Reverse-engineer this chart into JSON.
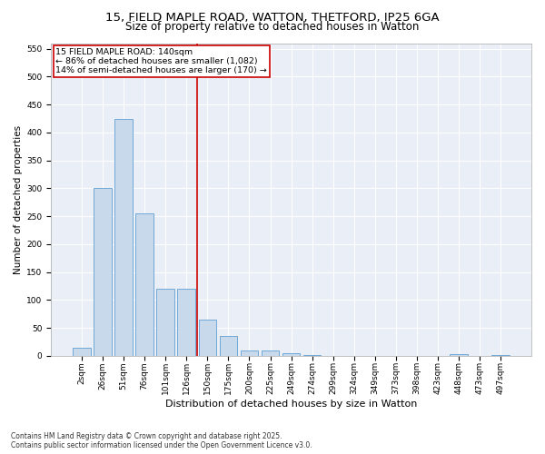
{
  "title_line1": "15, FIELD MAPLE ROAD, WATTON, THETFORD, IP25 6GA",
  "title_line2": "Size of property relative to detached houses in Watton",
  "xlabel": "Distribution of detached houses by size in Watton",
  "ylabel": "Number of detached properties",
  "bar_labels": [
    "2sqm",
    "26sqm",
    "51sqm",
    "76sqm",
    "101sqm",
    "126sqm",
    "150sqm",
    "175sqm",
    "200sqm",
    "225sqm",
    "249sqm",
    "274sqm",
    "299sqm",
    "324sqm",
    "349sqm",
    "373sqm",
    "398sqm",
    "423sqm",
    "448sqm",
    "473sqm",
    "497sqm"
  ],
  "bar_values": [
    15,
    300,
    425,
    255,
    120,
    120,
    65,
    35,
    10,
    10,
    5,
    2,
    0,
    0,
    0,
    0,
    0,
    0,
    3,
    0,
    2
  ],
  "bar_color": "#c9d9ec",
  "bar_edge_color": "#6fa8d6",
  "vline_color": "#cc0000",
  "annotation_text": "15 FIELD MAPLE ROAD: 140sqm\n← 86% of detached houses are smaller (1,082)\n14% of semi-detached houses are larger (170) →",
  "annotation_box_edge": "#cc0000",
  "ylim": [
    0,
    560
  ],
  "yticks": [
    0,
    50,
    100,
    150,
    200,
    250,
    300,
    350,
    400,
    450,
    500,
    550
  ],
  "bg_color": "#eaeff7",
  "footer": "Contains HM Land Registry data © Crown copyright and database right 2025.\nContains public sector information licensed under the Open Government Licence v3.0.",
  "title_fontsize": 9.5,
  "subtitle_fontsize": 8.5,
  "ylabel_fontsize": 7.5,
  "xlabel_fontsize": 8,
  "annotation_fontsize": 6.8,
  "tick_fontsize": 6.5
}
